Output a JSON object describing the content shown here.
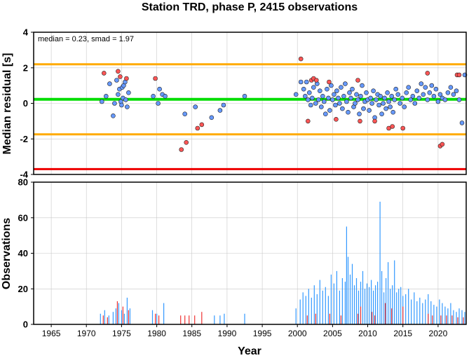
{
  "chart_data": [
    {
      "type": "scatter",
      "title": "Station TRD, phase P, 2415 observations",
      "xlabel": "",
      "ylabel": "Median residual [s]",
      "xlim": [
        1962.5,
        2024
      ],
      "ylim": [
        -4,
        4
      ],
      "yticks": [
        -4,
        -2,
        0,
        2,
        4
      ],
      "annotation": "median = 0.23, smad = 1.97",
      "grid": true,
      "colors": {
        "normal": "#6699ff",
        "outlier": "#ff5555",
        "median_line": "#00dd00",
        "smad_band": "#ffaa00",
        "limit_line": "#ee0000"
      },
      "hlines": [
        {
          "y": 0.23,
          "color": "#00dd00"
        },
        {
          "y": 2.2,
          "color": "#ffaa00"
        },
        {
          "y": -1.74,
          "color": "#ffaa00"
        },
        {
          "y": -3.7,
          "color": "#ee0000"
        }
      ],
      "series": [
        {
          "x": [
            1972.2,
            1972.8,
            1973.3,
            1973.8,
            1974.0,
            1974.3,
            1974.5,
            1974.7,
            1974.9,
            1975.0,
            1975.1,
            1975.2,
            1975.3,
            1975.5,
            1975.6,
            1975.8,
            1976.0,
            1979.5,
            1980.2,
            1980.4,
            1980.8,
            1981.2,
            1984.0,
            1985.5,
            1987.8,
            1989.0,
            1989.5,
            1992.5,
            1999.8,
            2000.5,
            2000.9,
            2001.1,
            2001.3,
            2001.5,
            2001.7,
            2001.9,
            2002.1,
            2002.3,
            2002.6,
            2002.8,
            2003.0,
            2003.2,
            2003.4,
            2003.6,
            2003.8,
            2004.0,
            2004.2,
            2004.4,
            2004.6,
            2004.8,
            2005.0,
            2005.2,
            2005.4,
            2005.6,
            2005.8,
            2006.0,
            2006.2,
            2006.4,
            2006.6,
            2006.8,
            2007.0,
            2007.2,
            2007.4,
            2007.6,
            2007.8,
            2008.0,
            2008.2,
            2008.4,
            2008.6,
            2008.8,
            2009.0,
            2009.2,
            2009.4,
            2009.6,
            2009.8,
            2010.0,
            2010.2,
            2010.4,
            2010.6,
            2010.8,
            2011.0,
            2011.2,
            2011.4,
            2011.6,
            2011.8,
            2012.0,
            2012.2,
            2012.4,
            2012.6,
            2012.8,
            2013.0,
            2013.2,
            2013.4,
            2013.6,
            2013.8,
            2014.0,
            2014.3,
            2014.6,
            2014.9,
            2015.2,
            2015.5,
            2015.8,
            2016.1,
            2016.4,
            2016.7,
            2017.0,
            2017.3,
            2017.6,
            2017.9,
            2018.2,
            2018.5,
            2018.8,
            2019.1,
            2019.4,
            2019.7,
            2020.0,
            2020.3,
            2020.6,
            2021.0,
            2021.4,
            2021.8,
            2022.2,
            2022.6,
            2023.0,
            2023.4,
            2023.8
          ],
          "y": [
            0.1,
            0.4,
            1.1,
            -0.7,
            0.0,
            1.3,
            0.5,
            0.8,
            0.1,
            -0.1,
            0.9,
            0.3,
            1.0,
            1.2,
            0.2,
            -0.2,
            0.6,
            0.4,
            0.0,
            0.8,
            0.5,
            0.4,
            -0.6,
            -0.2,
            -0.8,
            -0.4,
            -0.1,
            0.4,
            0.5,
            1.2,
            0.8,
            0.4,
            1.2,
            0.2,
            0.6,
            -0.1,
            0.3,
            0.9,
            0.0,
            1.1,
            0.2,
            0.7,
            -0.2,
            0.4,
            0.1,
            -0.6,
            0.8,
            0.3,
            -0.4,
            1.0,
            0.2,
            0.5,
            -0.1,
            0.7,
            0.3,
            0.0,
            0.9,
            -0.3,
            0.4,
            1.1,
            0.1,
            -0.5,
            0.6,
            0.3,
            0.8,
            -0.2,
            0.0,
            0.5,
            0.2,
            -0.6,
            0.4,
            1.0,
            -0.3,
            0.1,
            0.6,
            0.2,
            -0.4,
            0.3,
            0.0,
            0.7,
            -0.8,
            0.2,
            0.5,
            -0.1,
            0.4,
            -0.6,
            0.0,
            0.3,
            -0.3,
            0.6,
            0.1,
            -0.2,
            0.4,
            -0.5,
            0.2,
            0.8,
            0.5,
            0.0,
            0.3,
            -0.2,
            0.6,
            0.9,
            0.2,
            0.4,
            0.0,
            0.7,
            0.3,
            1.1,
            0.5,
            0.9,
            0.2,
            0.6,
            1.0,
            0.4,
            0.8,
            0.1,
            0.5,
            0.3,
            0.2,
            0.6,
            0.9,
            0.5,
            0.7,
            0.2,
            -1.1,
            1.6
          ]
        },
        {
          "x": [
            1972.5,
            1974.5,
            1974.8,
            1975.7,
            1979.8,
            1983.5,
            1984.2,
            1985.8,
            1986.4,
            2000.5,
            2001.5,
            2002.0,
            2002.3,
            2002.7,
            2004.5,
            2005.5,
            2008.6,
            2008.9,
            2011.0,
            2013.0,
            2013.5,
            2015.0,
            2018.5,
            2020.3,
            2020.6,
            2022.7,
            2023.0
          ],
          "y": [
            1.7,
            1.8,
            1.5,
            1.4,
            1.4,
            -2.6,
            -2.2,
            -1.4,
            -1.2,
            2.5,
            -1.0,
            1.3,
            1.4,
            1.3,
            1.2,
            -0.9,
            1.3,
            -1.0,
            -1.0,
            -1.4,
            -1.3,
            -1.4,
            1.7,
            -2.4,
            -2.3,
            1.6,
            1.6
          ]
        }
      ]
    },
    {
      "type": "bar",
      "title": "",
      "xlabel": "Year",
      "ylabel": "Observations",
      "xlim": [
        1962.5,
        2024
      ],
      "ylim": [
        0,
        80
      ],
      "yticks": [
        0,
        20,
        40,
        60,
        80
      ],
      "xticks": [
        1965,
        1970,
        1975,
        1980,
        1985,
        1990,
        1995,
        2000,
        2005,
        2010,
        2015,
        2020
      ],
      "xticklabels": [
        "1965",
        "1970",
        "1975",
        "1980",
        "1985",
        "1990",
        "1995",
        "2000",
        "2005",
        "2010",
        "2015",
        "2020"
      ],
      "grid": true,
      "colors": {
        "normal": "#3399ff",
        "outlier": "#ee3333"
      },
      "series": [
        {
          "x": [
            1972.0,
            1972.6,
            1973.2,
            1973.8,
            1974.2,
            1974.6,
            1975.0,
            1975.4,
            1975.8,
            1976.2,
            1979.4,
            1980.0,
            1981.0,
            1988.2,
            1989.0,
            1989.6,
            1992.5,
            1999.8,
            2000.4,
            2000.8,
            2001.2,
            2001.6,
            2002.0,
            2002.4,
            2002.8,
            2003.2,
            2003.6,
            2004.0,
            2004.4,
            2004.8,
            2005.2,
            2005.6,
            2006.0,
            2006.4,
            2006.8,
            2007.0,
            2007.2,
            2007.5,
            2007.8,
            2008.1,
            2008.4,
            2008.7,
            2009.0,
            2009.3,
            2009.6,
            2009.9,
            2010.2,
            2010.5,
            2010.8,
            2011.1,
            2011.4,
            2011.75,
            2012.0,
            2012.3,
            2012.6,
            2012.9,
            2013.2,
            2013.5,
            2013.8,
            2014.1,
            2014.4,
            2014.7,
            2015.0,
            2015.4,
            2015.8,
            2016.2,
            2016.6,
            2017.0,
            2017.4,
            2017.8,
            2018.2,
            2018.6,
            2019.0,
            2019.4,
            2019.8,
            2020.2,
            2020.6,
            2021.0,
            2021.4,
            2021.8,
            2022.2,
            2022.6,
            2023.0,
            2023.4,
            2023.8
          ],
          "values": [
            6,
            8,
            5,
            7,
            9,
            12,
            8,
            6,
            15,
            9,
            8,
            6,
            12,
            5,
            5,
            6,
            6,
            9,
            14,
            18,
            16,
            20,
            15,
            22,
            17,
            25,
            19,
            21,
            16,
            28,
            23,
            30,
            19,
            26,
            24,
            55,
            38,
            28,
            34,
            22,
            26,
            19,
            24,
            30,
            20,
            23,
            21,
            25,
            19,
            22,
            24,
            69,
            30,
            18,
            26,
            35,
            20,
            22,
            36,
            18,
            20,
            21,
            16,
            17,
            20,
            14,
            18,
            13,
            15,
            12,
            14,
            17,
            13,
            11,
            10,
            14,
            12,
            10,
            9,
            12,
            8,
            7,
            9,
            8,
            7
          ]
        },
        {
          "x": [
            1972.4,
            1973.0,
            1974.4,
            1975.2,
            1976.0,
            1979.8,
            1980.3,
            1983.4,
            1984.0,
            1984.6,
            1985.4,
            1986.4,
            2001.4,
            2002.6,
            2004.6,
            2006.2,
            2008.6,
            2009.0,
            2010.6,
            2011.0,
            2012.5,
            2013.4,
            2015.0,
            2018.6,
            2019.2,
            2020.4,
            2021.2,
            2022.0,
            2022.8,
            2023.6
          ],
          "values": [
            5,
            4,
            13,
            10,
            8,
            6,
            5,
            5,
            5,
            5,
            5,
            7,
            5,
            6,
            6,
            5,
            6,
            10,
            7,
            5,
            12,
            9,
            10,
            6,
            5,
            5,
            5,
            5,
            4,
            4
          ]
        }
      ]
    }
  ]
}
